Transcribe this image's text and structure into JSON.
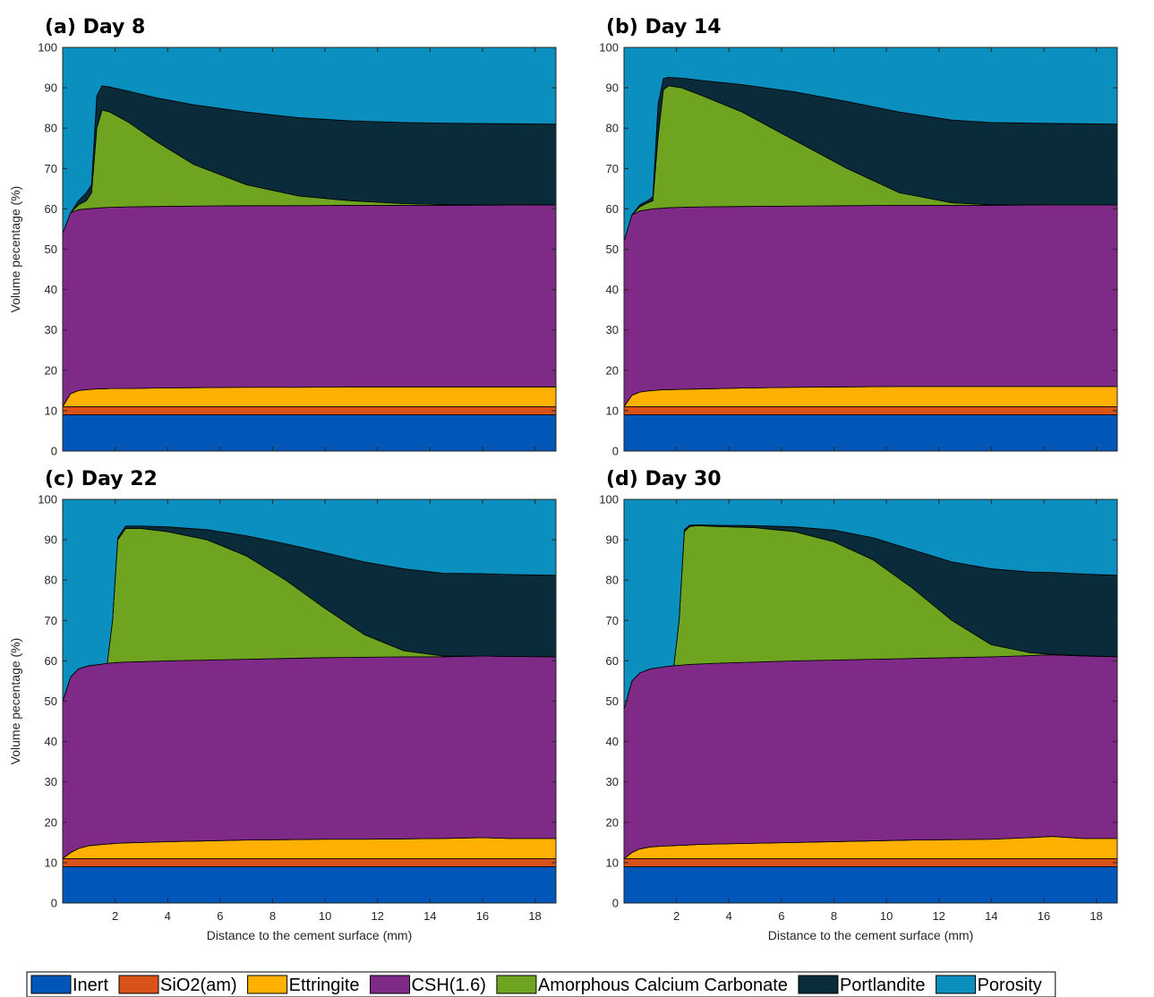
{
  "figure": {
    "layers": [
      {
        "name": "Inert",
        "color": "#0057B8"
      },
      {
        "name": "SiO2(am)",
        "color": "#D95319"
      },
      {
        "name": "Ettringite",
        "color": "#FFB000"
      },
      {
        "name": "CSH(1.6)",
        "color": "#7E2A86"
      },
      {
        "name": "Amorphous Calcium Carbonate",
        "color": "#6FA420"
      },
      {
        "name": "Portlandite",
        "color": "#0A2C3A"
      },
      {
        "name": "Porosity",
        "color": "#0A8FBF"
      }
    ]
  },
  "chart_data": [
    {
      "type": "area",
      "title": "(a) Day 8",
      "xlabel": "",
      "ylabel": "Volume pecentage (%)",
      "xlim": [
        0,
        18.8
      ],
      "ylim": [
        0,
        100
      ],
      "xticks": [
        2,
        4,
        6,
        8,
        10,
        12,
        14,
        16,
        18
      ],
      "yticks": [
        0,
        10,
        20,
        30,
        40,
        50,
        60,
        70,
        80,
        90,
        100
      ],
      "x": [
        0,
        0.3,
        0.6,
        0.9,
        1.1,
        1.3,
        1.5,
        1.8,
        2.5,
        3.5,
        5,
        7,
        9,
        11,
        13,
        15,
        18.8
      ],
      "cumulative": {
        "Inert": [
          9,
          9,
          9,
          9,
          9,
          9,
          9,
          9,
          9,
          9,
          9,
          9,
          9,
          9,
          9,
          9,
          9
        ],
        "SiO2(am)": [
          11,
          11,
          11,
          11,
          11,
          11,
          11,
          11,
          11,
          11,
          11,
          11,
          11,
          11,
          11,
          11,
          11
        ],
        "Ettringite": [
          11,
          14.2,
          15,
          15.2,
          15.3,
          15.4,
          15.4,
          15.5,
          15.5,
          15.6,
          15.7,
          15.8,
          15.8,
          15.9,
          15.9,
          15.9,
          15.9
        ],
        "CSH(1.6)": [
          54,
          59,
          59.8,
          60,
          60.1,
          60.2,
          60.3,
          60.4,
          60.5,
          60.6,
          60.7,
          60.8,
          60.8,
          60.9,
          60.9,
          60.9,
          61
        ],
        "Amorphous Calcium Carbonate": [
          54,
          59,
          61,
          62,
          64,
          80,
          84.5,
          84,
          81.5,
          77,
          71,
          66,
          63.2,
          62,
          61.3,
          61,
          61
        ],
        "Portlandite": [
          54,
          59,
          62,
          64,
          66,
          88,
          90.5,
          90.2,
          89.2,
          87.6,
          85.8,
          84,
          82.6,
          81.8,
          81.4,
          81.2,
          81
        ],
        "Porosity": [
          100,
          100,
          100,
          100,
          100,
          100,
          100,
          100,
          100,
          100,
          100,
          100,
          100,
          100,
          100,
          100,
          100
        ]
      }
    },
    {
      "type": "area",
      "title": "(b) Day 14",
      "xlabel": "",
      "ylabel": "",
      "xlim": [
        0,
        18.8
      ],
      "ylim": [
        0,
        100
      ],
      "xticks": [
        2,
        4,
        6,
        8,
        10,
        12,
        14,
        16,
        18
      ],
      "yticks": [
        0,
        10,
        20,
        30,
        40,
        50,
        60,
        70,
        80,
        90,
        100
      ],
      "x": [
        0,
        0.3,
        0.6,
        0.9,
        1.1,
        1.3,
        1.5,
        1.7,
        2.2,
        3,
        4.5,
        6.5,
        8.5,
        10.5,
        12.5,
        14,
        16,
        18.8
      ],
      "cumulative": {
        "Inert": [
          9,
          9,
          9,
          9,
          9,
          9,
          9,
          9,
          9,
          9,
          9,
          9,
          9,
          9,
          9,
          9,
          9,
          9
        ],
        "SiO2(am)": [
          11,
          11,
          11,
          11,
          11,
          11,
          11,
          11,
          11,
          11,
          11,
          11,
          11,
          11,
          11,
          11,
          11,
          11
        ],
        "Ettringite": [
          11,
          13.8,
          14.6,
          14.9,
          15,
          15.1,
          15.2,
          15.2,
          15.3,
          15.4,
          15.6,
          15.8,
          15.9,
          16,
          16,
          16,
          16,
          16
        ],
        "CSH(1.6)": [
          52,
          58.5,
          59.5,
          59.8,
          60,
          60.1,
          60.2,
          60.3,
          60.4,
          60.5,
          60.6,
          60.7,
          60.8,
          60.9,
          60.9,
          60.9,
          61,
          61
        ],
        "Amorphous Calcium Carbonate": [
          52,
          58.5,
          60.5,
          61.5,
          62,
          78,
          89.5,
          90.5,
          90,
          88,
          84,
          77,
          70,
          64,
          61.5,
          61,
          61,
          61
        ],
        "Portlandite": [
          52,
          58.5,
          61,
          62,
          63,
          86,
          92.3,
          92.6,
          92.4,
          91.8,
          90.8,
          89,
          86.6,
          84,
          82,
          81.4,
          81.2,
          81
        ]
      }
    },
    {
      "type": "area",
      "title": "(c) Day 22",
      "xlabel": "Distance to the cement surface (mm)",
      "ylabel": "Volume pecentage (%)",
      "xlim": [
        0,
        18.8
      ],
      "ylim": [
        0,
        100
      ],
      "xticks": [
        2,
        4,
        6,
        8,
        10,
        12,
        14,
        16,
        18
      ],
      "yticks": [
        0,
        10,
        20,
        30,
        40,
        50,
        60,
        70,
        80,
        90,
        100
      ],
      "x": [
        0,
        0.3,
        0.6,
        1,
        1.5,
        1.7,
        1.9,
        2.1,
        2.4,
        3,
        4,
        5.5,
        7,
        8.5,
        10,
        11.5,
        13,
        14.5,
        16,
        17,
        18.8
      ],
      "cumulative": {
        "Inert": [
          9,
          9,
          9,
          9,
          9,
          9,
          9,
          9,
          9,
          9,
          9,
          9,
          9,
          9,
          9,
          9,
          9,
          9,
          9,
          9,
          9
        ],
        "SiO2(am)": [
          11,
          11,
          11,
          11,
          11,
          11,
          11,
          11,
          11,
          11,
          11,
          11,
          11,
          11,
          11,
          11,
          11,
          11,
          11,
          11,
          11
        ],
        "Ettringite": [
          11,
          12.5,
          13.5,
          14.2,
          14.5,
          14.6,
          14.7,
          14.8,
          14.9,
          15,
          15.2,
          15.4,
          15.6,
          15.7,
          15.8,
          15.8,
          15.9,
          16,
          16.2,
          16,
          16
        ],
        "CSH(1.6)": [
          50,
          56,
          58,
          58.8,
          59.2,
          59.4,
          59.5,
          59.6,
          59.7,
          59.8,
          60,
          60.2,
          60.4,
          60.6,
          60.8,
          60.9,
          61,
          61,
          61.2,
          61.1,
          61
        ],
        "Amorphous Calcium Carbonate": [
          50,
          56,
          58,
          58.8,
          59.2,
          59.4,
          70,
          90,
          92.8,
          92.8,
          92,
          90,
          86,
          80,
          73,
          66.5,
          62.5,
          61.2,
          61.2,
          61.1,
          61
        ],
        "Portlandite": [
          50,
          56,
          58,
          58.8,
          59.2,
          59.4,
          70,
          90.5,
          93.4,
          93.4,
          93.2,
          92.5,
          91,
          89,
          86.8,
          84.5,
          82.8,
          81.7,
          81.6,
          81.4,
          81.2
        ]
      }
    },
    {
      "type": "area",
      "title": "(d) Day 30",
      "xlabel": "Distance to the cement surface (mm)",
      "ylabel": "",
      "xlim": [
        0,
        18.8
      ],
      "ylim": [
        0,
        100
      ],
      "xticks": [
        2,
        4,
        6,
        8,
        10,
        12,
        14,
        16,
        18
      ],
      "yticks": [
        0,
        10,
        20,
        30,
        40,
        50,
        60,
        70,
        80,
        90,
        100
      ],
      "x": [
        0,
        0.3,
        0.6,
        1,
        1.5,
        1.9,
        2.1,
        2.3,
        2.5,
        2.8,
        3.5,
        5,
        6.5,
        8,
        9.5,
        11,
        12.5,
        14,
        15.5,
        16.3,
        17.5,
        18.8
      ],
      "cumulative": {
        "Inert": [
          9,
          9,
          9,
          9,
          9,
          9,
          9,
          9,
          9,
          9,
          9,
          9,
          9,
          9,
          9,
          9,
          9,
          9,
          9,
          9,
          9,
          9
        ],
        "SiO2(am)": [
          11,
          11,
          11,
          11,
          11,
          11,
          11,
          11,
          11,
          11,
          11,
          11,
          11,
          11,
          11,
          11,
          11,
          11,
          11,
          11,
          11,
          11
        ],
        "Ettringite": [
          11,
          12.5,
          13.4,
          13.9,
          14.1,
          14.2,
          14.3,
          14.3,
          14.4,
          14.5,
          14.6,
          14.8,
          15,
          15.2,
          15.4,
          15.6,
          15.7,
          15.8,
          16.2,
          16.5,
          16,
          16
        ],
        "CSH(1.6)": [
          48,
          55,
          57,
          58,
          58.5,
          58.8,
          58.9,
          59,
          59.1,
          59.2,
          59.4,
          59.7,
          60,
          60.2,
          60.4,
          60.6,
          60.8,
          61,
          61.3,
          61.5,
          61.2,
          61
        ],
        "Amorphous Calcium Carbonate": [
          48,
          55,
          57,
          58,
          58.5,
          58.8,
          70,
          92,
          93.3,
          93.5,
          93.3,
          93,
          92,
          89.5,
          85,
          78,
          70,
          64,
          62,
          61.6,
          61.3,
          61
        ],
        "Portlandite": [
          48,
          55,
          57,
          58,
          58.5,
          58.8,
          70,
          92.5,
          93.6,
          93.7,
          93.6,
          93.5,
          93.2,
          92.4,
          90.5,
          87.5,
          84.5,
          82.8,
          82,
          81.9,
          81.5,
          81.2
        ]
      }
    }
  ]
}
